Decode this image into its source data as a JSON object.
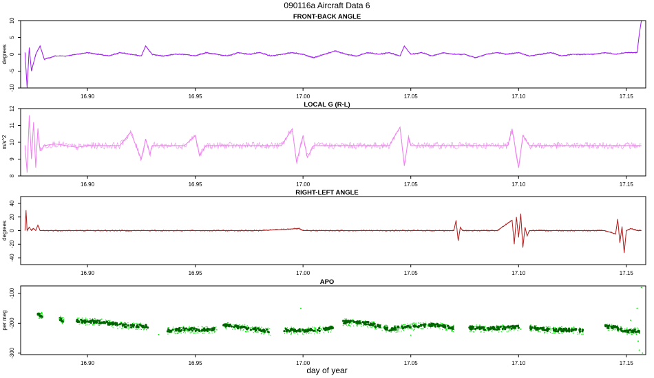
{
  "figure": {
    "title": "090116a   Aircraft Data 6",
    "xlabel": "day of year"
  },
  "chart_data": [
    {
      "type": "line",
      "title": "FRONT-BACK ANGLE",
      "ylabel": "degrees",
      "xlim": [
        16.869,
        17.159
      ],
      "ylim": [
        -10,
        10
      ],
      "xticks": [
        "16.90",
        "16.95",
        "17.00",
        "17.05",
        "17.10",
        "17.15"
      ],
      "yticks": [
        "-10",
        "-5",
        "0",
        "5",
        "10"
      ],
      "color": "#a020f0",
      "series": [
        {
          "x": [
            16.871,
            16.872,
            16.873,
            16.874,
            16.876,
            16.878,
            16.88,
            16.885,
            16.89,
            16.895,
            16.9,
            16.905,
            16.91,
            16.915,
            16.92,
            16.925,
            16.927,
            16.93,
            16.935,
            16.94,
            16.945,
            16.95,
            16.955,
            16.96,
            16.965,
            16.97,
            16.975,
            16.98,
            16.985,
            16.99,
            16.995,
            17.0,
            17.005,
            17.01,
            17.015,
            17.02,
            17.025,
            17.03,
            17.035,
            17.04,
            17.045,
            17.047,
            17.05,
            17.055,
            17.06,
            17.065,
            17.07,
            17.075,
            17.08,
            17.085,
            17.09,
            17.095,
            17.1,
            17.105,
            17.11,
            17.115,
            17.12,
            17.125,
            17.13,
            17.135,
            17.14,
            17.145,
            17.15,
            17.155,
            17.156,
            17.157
          ],
          "y": [
            0.5,
            -10,
            2,
            -5,
            0,
            2.5,
            -1.5,
            -0.5,
            -0.5,
            0,
            0.5,
            0,
            -0.5,
            0.5,
            0,
            -0.5,
            2.5,
            0,
            -0.5,
            0,
            0,
            -0.5,
            0.5,
            0,
            -0.5,
            0.5,
            0,
            0.5,
            -0.5,
            0,
            0.5,
            0,
            -1,
            0,
            1,
            0,
            -0.5,
            0.5,
            0,
            0.5,
            -0.5,
            2.5,
            0,
            0.5,
            -0.5,
            0.5,
            0,
            0,
            -1,
            0,
            0.5,
            0,
            0.5,
            -0.5,
            0,
            0.5,
            -0.5,
            0,
            0,
            0,
            0.5,
            0,
            0.5,
            0.5,
            6,
            10
          ]
        }
      ]
    },
    {
      "type": "line",
      "title": "LOCAL G (R-L)",
      "ylabel": "m/s^2",
      "xlim": [
        16.869,
        17.159
      ],
      "ylim": [
        8,
        12
      ],
      "xticks": [
        "16.90",
        "16.95",
        "17.00",
        "17.05",
        "17.10",
        "17.15"
      ],
      "yticks": [
        "8",
        "9",
        "10",
        "11",
        "12"
      ],
      "color": "#ee82ee",
      "series": [
        {
          "x": [
            16.871,
            16.872,
            16.873,
            16.874,
            16.875,
            16.876,
            16.877,
            16.878,
            16.88,
            16.885,
            16.89,
            16.895,
            16.9,
            16.905,
            16.91,
            16.915,
            16.92,
            16.925,
            16.927,
            16.929,
            16.93,
            16.935,
            16.94,
            16.945,
            16.95,
            16.952,
            16.955,
            16.96,
            16.965,
            16.97,
            16.975,
            16.98,
            16.985,
            16.99,
            16.995,
            16.997,
            17.0,
            17.002,
            17.005,
            17.01,
            17.015,
            17.02,
            17.025,
            17.03,
            17.035,
            17.04,
            17.045,
            17.047,
            17.049,
            17.05,
            17.055,
            17.06,
            17.065,
            17.07,
            17.075,
            17.08,
            17.085,
            17.09,
            17.095,
            17.097,
            17.1,
            17.102,
            17.105,
            17.11,
            17.115,
            17.12,
            17.125,
            17.13,
            17.135,
            17.14,
            17.145,
            17.15,
            17.155,
            17.157
          ],
          "y": [
            9.8,
            8.2,
            11.6,
            9.0,
            11.2,
            8.5,
            10.8,
            9.5,
            9.8,
            9.9,
            9.8,
            9.7,
            9.8,
            9.8,
            9.8,
            9.8,
            10.6,
            9.0,
            10.2,
            9.3,
            9.8,
            9.8,
            9.8,
            9.8,
            10.4,
            9.2,
            9.8,
            9.8,
            9.8,
            9.8,
            9.8,
            9.8,
            9.8,
            9.8,
            10.8,
            8.8,
            10.4,
            9.1,
            9.8,
            9.8,
            9.8,
            9.8,
            9.8,
            9.8,
            9.8,
            9.8,
            10.9,
            8.6,
            10.3,
            9.8,
            9.8,
            9.8,
            9.8,
            9.8,
            9.8,
            9.8,
            9.8,
            9.8,
            9.8,
            10.8,
            8.5,
            10.4,
            9.8,
            9.8,
            9.8,
            9.8,
            9.8,
            9.8,
            9.8,
            9.8,
            9.8,
            9.8,
            9.8,
            9.8
          ]
        }
      ]
    },
    {
      "type": "line",
      "title": "RIGHT-LEFT ANGLE",
      "ylabel": "degrees",
      "xlim": [
        16.869,
        17.159
      ],
      "ylim": [
        -50,
        50
      ],
      "xticks": [
        "16.90",
        "16.95",
        "17.00",
        "17.05",
        "17.10",
        "17.15"
      ],
      "yticks": [
        "-40",
        "-20",
        "0",
        "20",
        "40"
      ],
      "color": "#b22222",
      "series": [
        {
          "x": [
            16.871,
            16.8715,
            16.872,
            16.873,
            16.874,
            16.875,
            16.876,
            16.877,
            16.878,
            16.88,
            16.9,
            16.92,
            16.94,
            16.96,
            16.98,
            16.998,
            17.0,
            17.02,
            17.04,
            17.06,
            17.07,
            17.071,
            17.072,
            17.073,
            17.074,
            17.08,
            17.09,
            17.097,
            17.098,
            17.099,
            17.1,
            17.101,
            17.102,
            17.103,
            17.104,
            17.105,
            17.11,
            17.12,
            17.13,
            17.14,
            17.145,
            17.146,
            17.147,
            17.148,
            17.149,
            17.15,
            17.152,
            17.155,
            17.157
          ],
          "y": [
            0,
            30,
            0,
            5,
            0,
            3,
            0,
            8,
            0,
            0,
            0,
            0,
            0,
            0,
            0,
            3,
            0,
            0,
            0,
            0,
            0,
            15,
            -15,
            5,
            0,
            0,
            0,
            15,
            -20,
            20,
            -10,
            25,
            -25,
            5,
            -8,
            0,
            0,
            0,
            0,
            0,
            -5,
            17,
            -18,
            6,
            -33,
            0,
            3,
            0,
            0
          ]
        }
      ]
    },
    {
      "type": "scatter",
      "title": "APO",
      "ylabel": "per meg",
      "xlim": [
        16.869,
        17.159
      ],
      "ylim": [
        -305,
        -75
      ],
      "xticks": [
        "16.90",
        "16.95",
        "17.00",
        "17.05",
        "17.10",
        "17.15"
      ],
      "yticks": [
        "-100",
        "-200",
        "-300"
      ],
      "colors": {
        "points": "#00ee00",
        "mean": "#006400"
      },
      "segments": [
        {
          "x": [
            16.877,
            16.879
          ],
          "y": [
            -170,
            -175
          ]
        },
        {
          "x": [
            16.887,
            16.889
          ],
          "y": [
            -185,
            -192
          ]
        },
        {
          "x": [
            16.895,
            16.905,
            16.915,
            16.92,
            16.925,
            16.928
          ],
          "y": [
            -192,
            -195,
            -205,
            -210,
            -208,
            -210
          ]
        },
        {
          "x": [
            16.937,
            16.945,
            16.955,
            16.96
          ],
          "y": [
            -225,
            -220,
            -222,
            -220
          ]
        },
        {
          "x": [
            16.963,
            16.97,
            16.98,
            16.985
          ],
          "y": [
            -205,
            -212,
            -222,
            -228
          ]
        },
        {
          "x": [
            16.991,
            17.0,
            17.01,
            17.014
          ],
          "y": [
            -222,
            -225,
            -220,
            -215
          ]
        },
        {
          "x": [
            17.018,
            17.03,
            17.04,
            17.05,
            17.06,
            17.07
          ],
          "y": [
            -195,
            -200,
            -220,
            -210,
            -205,
            -215
          ]
        },
        {
          "x": [
            17.077,
            17.085,
            17.095,
            17.1
          ],
          "y": [
            -215,
            -218,
            -215,
            -212
          ]
        },
        {
          "x": [
            17.105,
            17.115,
            17.125,
            17.13
          ],
          "y": [
            -215,
            -222,
            -222,
            -225
          ]
        },
        {
          "x": [
            17.14,
            17.145,
            17.15,
            17.156
          ],
          "y": [
            -210,
            -215,
            -225,
            -225
          ]
        }
      ],
      "outliers": {
        "x": [
          16.887,
          16.933,
          16.999,
          17.05,
          17.101,
          17.152,
          17.155,
          17.1555,
          17.156,
          17.157,
          17.1575
        ],
        "y": [
          -185,
          -238,
          -150,
          -240,
          -220,
          -190,
          -150,
          -260,
          -290,
          -80,
          -300
        ]
      }
    }
  ]
}
